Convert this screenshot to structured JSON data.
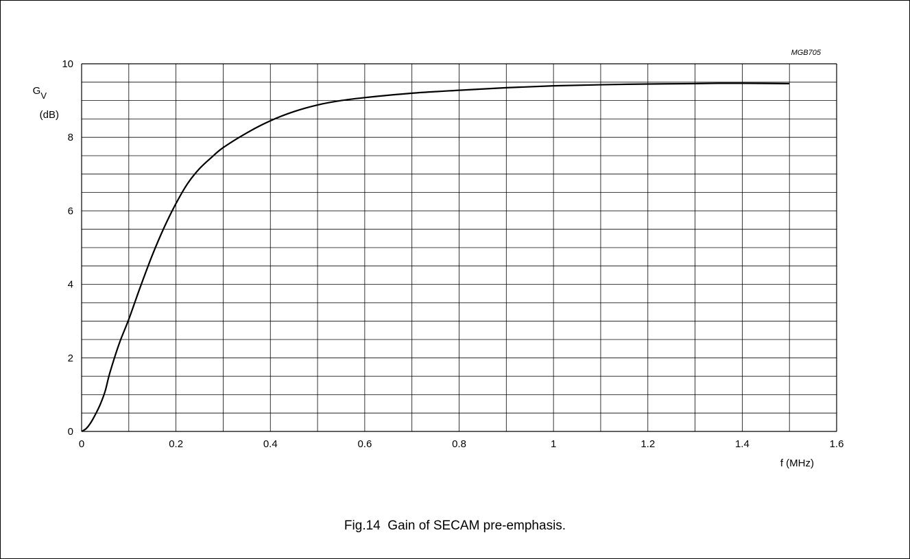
{
  "chart_data": {
    "type": "line",
    "code": "MGB705",
    "caption_number": "Fig.14",
    "caption_text": "Gain of SECAM pre-emphasis.",
    "xlabel": "f (MHz)",
    "ylabel_symbol": "G",
    "ylabel_subscript": "V",
    "ylabel_unit": "(dB)",
    "xlim": [
      0,
      1.6
    ],
    "ylim": [
      0,
      10
    ],
    "x_grid_step": 0.1,
    "y_grid_step": 1,
    "x_ticks": [
      {
        "value": 0,
        "label": "0"
      },
      {
        "value": 0.2,
        "label": "0.2"
      },
      {
        "value": 0.4,
        "label": "0.4"
      },
      {
        "value": 0.6,
        "label": "0.6"
      },
      {
        "value": 0.8,
        "label": "0.8"
      },
      {
        "value": 1.0,
        "label": "1"
      },
      {
        "value": 1.2,
        "label": "1.2"
      },
      {
        "value": 1.4,
        "label": "1.4"
      },
      {
        "value": 1.6,
        "label": "1.6"
      }
    ],
    "y_ticks": [
      {
        "value": 0,
        "label": "0"
      },
      {
        "value": 2,
        "label": "2"
      },
      {
        "value": 4,
        "label": "4"
      },
      {
        "value": 6,
        "label": "6"
      },
      {
        "value": 8,
        "label": "8"
      },
      {
        "value": 10,
        "label": "10"
      }
    ],
    "grid": true,
    "series": [
      {
        "x": [
          0,
          0.01,
          0.02,
          0.03,
          0.04,
          0.05,
          0.06,
          0.08,
          0.1,
          0.125,
          0.15,
          0.175,
          0.2,
          0.225,
          0.25,
          0.275,
          0.3,
          0.35,
          0.4,
          0.45,
          0.5,
          0.55,
          0.6,
          0.7,
          0.8,
          0.9,
          1.0,
          1.1,
          1.2,
          1.3,
          1.35,
          1.4,
          1.5
        ],
        "y": [
          0,
          0.08,
          0.25,
          0.48,
          0.75,
          1.1,
          1.6,
          2.4,
          3.05,
          3.95,
          4.8,
          5.55,
          6.2,
          6.75,
          7.15,
          7.45,
          7.72,
          8.12,
          8.45,
          8.7,
          8.88,
          9.0,
          9.08,
          9.2,
          9.28,
          9.35,
          9.4,
          9.43,
          9.45,
          9.46,
          9.47,
          9.47,
          9.46
        ],
        "color": "#000000"
      }
    ]
  }
}
